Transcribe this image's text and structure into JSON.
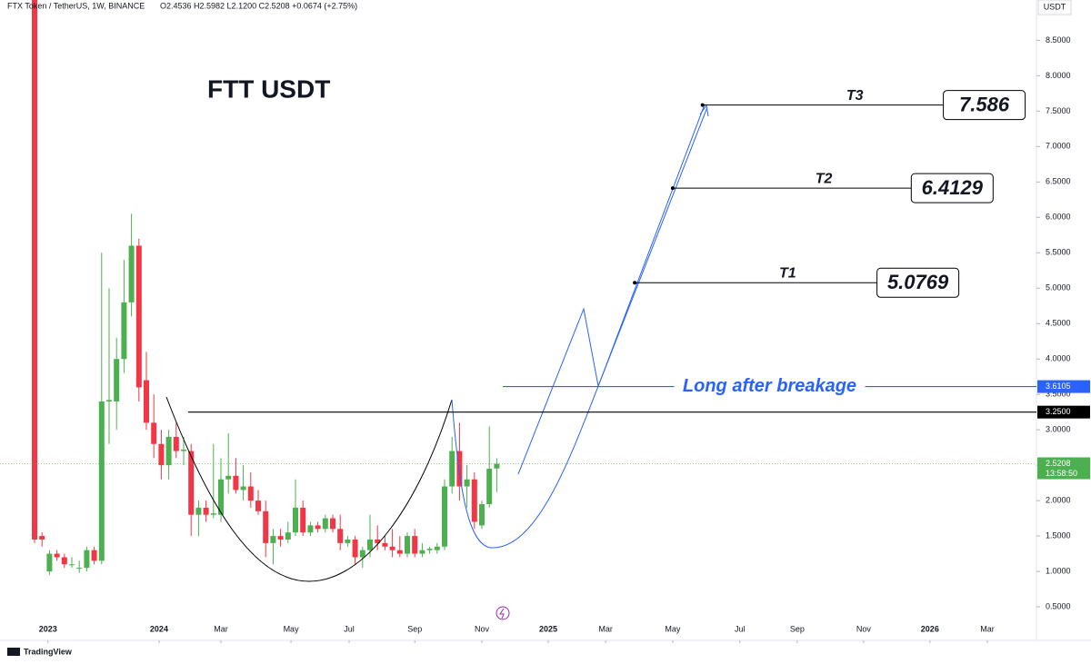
{
  "chart_data": {
    "type": "candlestick",
    "title": "FTT USDT",
    "symbol": "FTX Token / TetherUS, 1W, BINANCE",
    "ohlc_header": "O2.4536 H2.5982 L2.1200 C2.5208 +0.0674 (+2.75%)",
    "currency": "USDT",
    "brand": "TradingView",
    "up_color": "#4caf50",
    "down_color": "#f23645",
    "open": [
      9.5,
      1.5,
      1.0,
      1.25,
      1.2,
      1.1,
      1.05,
      1.05,
      1.3,
      1.15,
      3.4,
      3.4,
      4.0,
      4.8,
      5.6,
      3.7,
      3.1,
      2.8,
      2.5,
      2.9,
      2.7,
      2.7,
      1.8,
      1.9,
      1.8,
      1.8,
      2.3,
      2.35,
      2.15,
      2.2,
      2.0,
      1.85,
      1.4,
      1.5,
      1.45,
      1.55,
      1.9,
      1.55,
      1.65,
      1.6,
      1.75,
      1.6,
      1.4,
      1.45,
      1.2,
      1.3,
      1.45,
      1.4,
      1.35,
      1.3,
      1.25,
      1.5,
      1.25,
      1.3,
      1.3,
      1.35,
      2.2,
      2.7,
      2.2,
      2.3,
      1.65,
      1.95,
      2.4536
    ],
    "high": [
      9.5,
      1.55,
      1.3,
      1.3,
      1.25,
      1.2,
      1.15,
      1.35,
      1.35,
      5.5,
      5.0,
      4.3,
      5.4,
      6.05,
      5.7,
      4.1,
      3.5,
      3.0,
      3.0,
      3.1,
      2.9,
      2.8,
      2.0,
      2.0,
      2.8,
      2.6,
      2.95,
      2.6,
      2.5,
      2.4,
      2.15,
      2.0,
      1.6,
      1.6,
      1.7,
      2.3,
      2.0,
      1.7,
      1.7,
      1.8,
      1.8,
      1.8,
      1.5,
      1.5,
      1.35,
      1.8,
      1.65,
      1.5,
      1.6,
      1.5,
      1.55,
      1.6,
      1.4,
      1.35,
      1.4,
      2.3,
      2.9,
      3.1,
      2.5,
      2.4,
      2.0,
      3.05,
      2.5982
    ],
    "low": [
      1.4,
      1.35,
      0.95,
      1.15,
      1.05,
      1.05,
      0.98,
      1.0,
      1.1,
      1.1,
      2.8,
      3.0,
      3.8,
      4.6,
      3.4,
      3.0,
      2.6,
      2.3,
      2.3,
      2.6,
      2.5,
      1.5,
      1.5,
      1.7,
      1.75,
      1.7,
      2.1,
      2.1,
      2.0,
      1.9,
      1.8,
      1.2,
      1.1,
      1.35,
      1.4,
      1.5,
      1.5,
      1.5,
      1.55,
      1.55,
      1.55,
      1.3,
      1.35,
      1.1,
      1.05,
      1.2,
      1.3,
      1.3,
      1.2,
      1.2,
      1.2,
      1.2,
      1.2,
      1.25,
      1.25,
      1.3,
      2.1,
      2.0,
      1.9,
      1.6,
      1.6,
      1.9,
      2.12
    ],
    "close": [
      1.45,
      1.45,
      1.25,
      1.2,
      1.1,
      1.1,
      1.05,
      1.3,
      1.15,
      3.4,
      3.42,
      4.0,
      4.8,
      5.6,
      3.6,
      3.1,
      2.8,
      2.5,
      2.9,
      2.7,
      2.72,
      1.8,
      1.9,
      1.8,
      1.82,
      2.3,
      2.35,
      2.15,
      2.2,
      2.0,
      1.85,
      1.4,
      1.5,
      1.45,
      1.55,
      1.9,
      1.55,
      1.65,
      1.6,
      1.75,
      1.6,
      1.4,
      1.45,
      1.2,
      1.3,
      1.45,
      1.4,
      1.35,
      1.3,
      1.25,
      1.5,
      1.25,
      1.3,
      1.32,
      1.35,
      2.2,
      2.7,
      2.2,
      2.3,
      1.7,
      1.95,
      2.45,
      2.5208
    ],
    "xlim": [
      -4.634,
      134.39
    ],
    "xticks": [
      {
        "value": 1.8,
        "label": "2023"
      },
      {
        "value": 16.7,
        "label": "2024"
      },
      {
        "value": 25,
        "label": "Mar"
      },
      {
        "value": 34.4,
        "label": "May"
      },
      {
        "value": 42.2,
        "label": "Jul"
      },
      {
        "value": 51,
        "label": "Sep"
      },
      {
        "value": 60,
        "label": "Nov"
      },
      {
        "value": 68.9,
        "label": "2025"
      },
      {
        "value": 76.6,
        "label": "Mar"
      },
      {
        "value": 85.6,
        "label": "May"
      },
      {
        "value": 94.6,
        "label": "Jul"
      },
      {
        "value": 102.3,
        "label": "Sep"
      },
      {
        "value": 111.2,
        "label": "Nov"
      },
      {
        "value": 120.1,
        "label": "2026"
      },
      {
        "value": 127.8,
        "label": "Mar"
      }
    ],
    "ylim": [
      0.09,
      9.07
    ],
    "yticks": [
      {
        "value": 0.5,
        "label": "0.5000"
      },
      {
        "value": 1,
        "label": "1.0000"
      },
      {
        "value": 1.5,
        "label": "1.5000"
      },
      {
        "value": 2,
        "label": "2.0000"
      },
      {
        "value": 2.5,
        "label": "2.5000"
      },
      {
        "value": 3,
        "label": "3.0000"
      },
      {
        "value": 3.5,
        "label": "3.5000"
      },
      {
        "value": 4,
        "label": "4.0000"
      },
      {
        "value": 4.5,
        "label": "4.5000"
      },
      {
        "value": 5,
        "label": "5.0000"
      },
      {
        "value": 5.5,
        "label": "5.5000"
      },
      {
        "value": 6,
        "label": "6.0000"
      },
      {
        "value": 6.5,
        "label": "6.5000"
      },
      {
        "value": 7,
        "label": "7.0000"
      },
      {
        "value": 7.5,
        "label": "7.5000"
      },
      {
        "value": 8,
        "label": "8.0000"
      },
      {
        "value": 8.5,
        "label": "8.5000"
      }
    ],
    "levels": [
      {
        "value": 3.25,
        "label": "3.2500",
        "color": "#000000",
        "from_x": 20.6
      },
      {
        "value": 3.6105,
        "label": "3.6105",
        "color": "#2962ff",
        "from_x": 62.8,
        "text": "Long after breakage"
      }
    ],
    "current_price": {
      "value": 2.5208,
      "label": "2.5208",
      "countdown": "13:58:50",
      "color": "#4caf50"
    },
    "targets": [
      {
        "name": "T1",
        "value": 5.0769,
        "x": 80.5,
        "label_x": 113
      },
      {
        "name": "T2",
        "value": 6.4129,
        "x": 85.6,
        "label_x": 117.6
      },
      {
        "name": "T3",
        "value": 7.586,
        "x": 89.6,
        "label_x": 121.9
      }
    ]
  }
}
